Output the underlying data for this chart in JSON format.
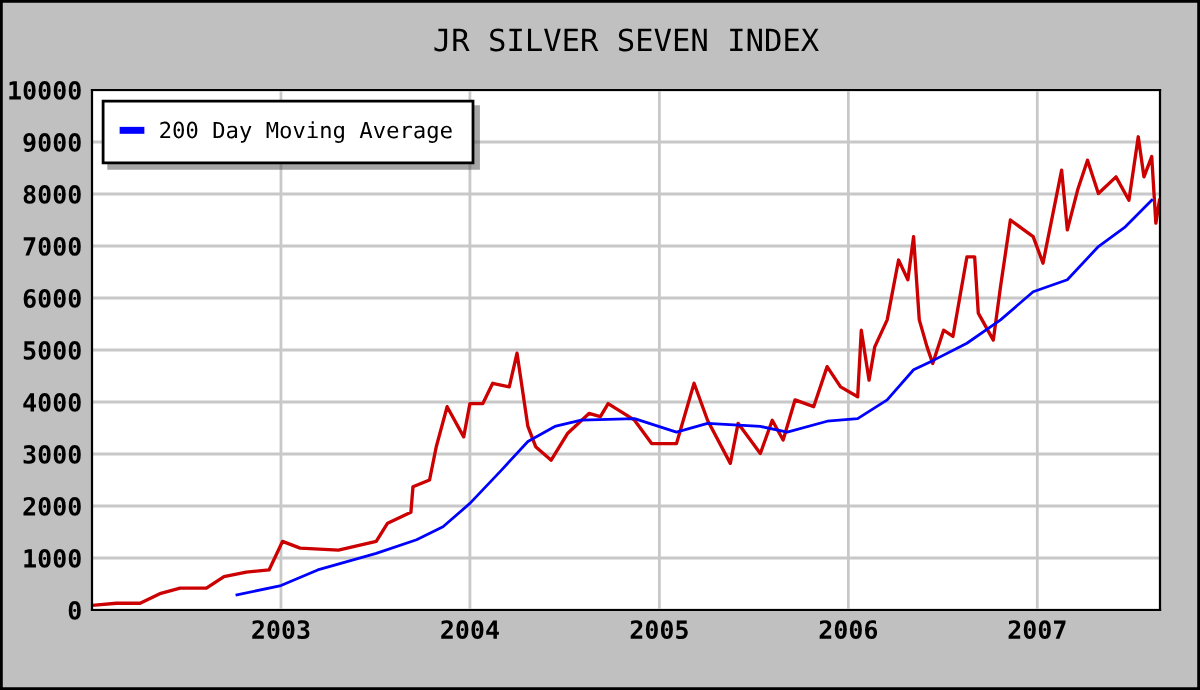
{
  "chart_data": {
    "type": "line",
    "title": "JR SILVER SEVEN INDEX",
    "xlim": [
      "2002-01-01",
      "2007-08-26"
    ],
    "xticks": [
      "2003",
      "2004",
      "2005",
      "2006",
      "2007"
    ],
    "ylim": [
      0,
      10000
    ],
    "yticks": [
      0,
      1000,
      2000,
      3000,
      4000,
      5000,
      6000,
      7000,
      8000,
      9000,
      10000
    ],
    "grid": true,
    "legend": "top left",
    "marker": "none",
    "line_style": "solid",
    "series": [
      {
        "color": "#cc0000",
        "x": [
          "2002-01-02",
          "2002-02-17",
          "2002-04-04",
          "2002-05-14",
          "2002-06-20",
          "2002-08-10",
          "2002-09-13",
          "2002-10-26",
          "2002-12-09",
          "2002-12-27",
          "2003-01-04",
          "2003-02-07",
          "2003-04-22",
          "2003-07-04",
          "2003-07-26",
          "2003-09-09",
          "2003-09-13",
          "2003-10-15",
          "2003-10-28",
          "2003-11-18",
          "2003-12-20",
          "2004-01-01",
          "2004-01-26",
          "2004-02-14",
          "2004-03-17",
          "2004-04-01",
          "2004-04-22",
          "2004-05-07",
          "2004-06-06",
          "2004-07-08",
          "2004-08-18",
          "2004-09-09",
          "2004-09-24",
          "2004-11-14",
          "2004-12-17",
          "2005-02-03",
          "2005-03-09",
          "2005-04-04",
          "2005-05-18",
          "2005-06-02",
          "2005-07-15",
          "2005-08-07",
          "2005-08-28",
          "2005-09-20",
          "2005-10-26",
          "2005-11-21",
          "2005-12-17",
          "2006-01-19",
          "2006-01-26",
          "2006-02-10",
          "2006-02-21",
          "2006-03-17",
          "2006-04-08",
          "2006-04-26",
          "2006-05-07",
          "2006-05-18",
          "2006-06-02",
          "2006-06-13",
          "2006-07-04",
          "2006-07-22",
          "2006-08-18",
          "2006-09-02",
          "2006-09-09",
          "2006-10-08",
          "2006-10-22",
          "2006-11-10",
          "2006-12-06",
          "2006-12-24",
          "2007-01-12",
          "2007-02-17",
          "2007-02-28",
          "2007-03-20",
          "2007-04-08",
          "2007-04-29",
          "2007-06-02",
          "2007-06-27",
          "2007-07-15",
          "2007-07-26",
          "2007-08-10",
          "2007-08-18",
          "2007-08-25"
        ],
        "values": [
          90,
          130,
          130,
          320,
          420,
          420,
          640,
          730,
          770,
          1150,
          1320,
          1190,
          1150,
          1320,
          1670,
          1880,
          2370,
          2500,
          3140,
          3910,
          3330,
          3970,
          3970,
          4360,
          4290,
          4940,
          3530,
          3140,
          2880,
          3400,
          3780,
          3720,
          3970,
          3650,
          3200,
          3200,
          4360,
          3650,
          2820,
          3590,
          3010,
          3650,
          3270,
          4040,
          3910,
          4680,
          4290,
          4100,
          5380,
          4420,
          5060,
          5580,
          6730,
          6350,
          7180,
          5580,
          5060,
          4740,
          5380,
          5260,
          6790,
          6790,
          5710,
          5190,
          6220,
          7500,
          7310,
          7180,
          6670,
          8460,
          7310,
          8080,
          8650,
          8010,
          8330,
          7880,
          9100,
          8330,
          8720,
          7440,
          7880
        ]
      },
      {
        "name": "200 Day Moving Average",
        "color": "#0000ff",
        "x": [
          "2002-10-08",
          "2003-01-01",
          "2003-03-13",
          "2003-07-04",
          "2003-09-20",
          "2003-11-10",
          "2004-01-01",
          "2004-03-02",
          "2004-04-22",
          "2004-06-13",
          "2004-08-03",
          "2004-11-14",
          "2005-02-03",
          "2005-04-04",
          "2005-07-15",
          "2005-09-05",
          "2005-11-21",
          "2006-01-19",
          "2006-03-17",
          "2006-05-07",
          "2006-06-16",
          "2006-08-18",
          "2006-10-22",
          "2006-12-24",
          "2007-02-28",
          "2007-04-29",
          "2007-06-20",
          "2007-08-10"
        ],
        "values": [
          290,
          470,
          770,
          1090,
          1350,
          1600,
          2050,
          2690,
          3240,
          3530,
          3650,
          3680,
          3420,
          3590,
          3530,
          3420,
          3630,
          3680,
          4040,
          4620,
          4810,
          5130,
          5580,
          6120,
          6350,
          6990,
          7370,
          7880
        ]
      }
    ]
  }
}
